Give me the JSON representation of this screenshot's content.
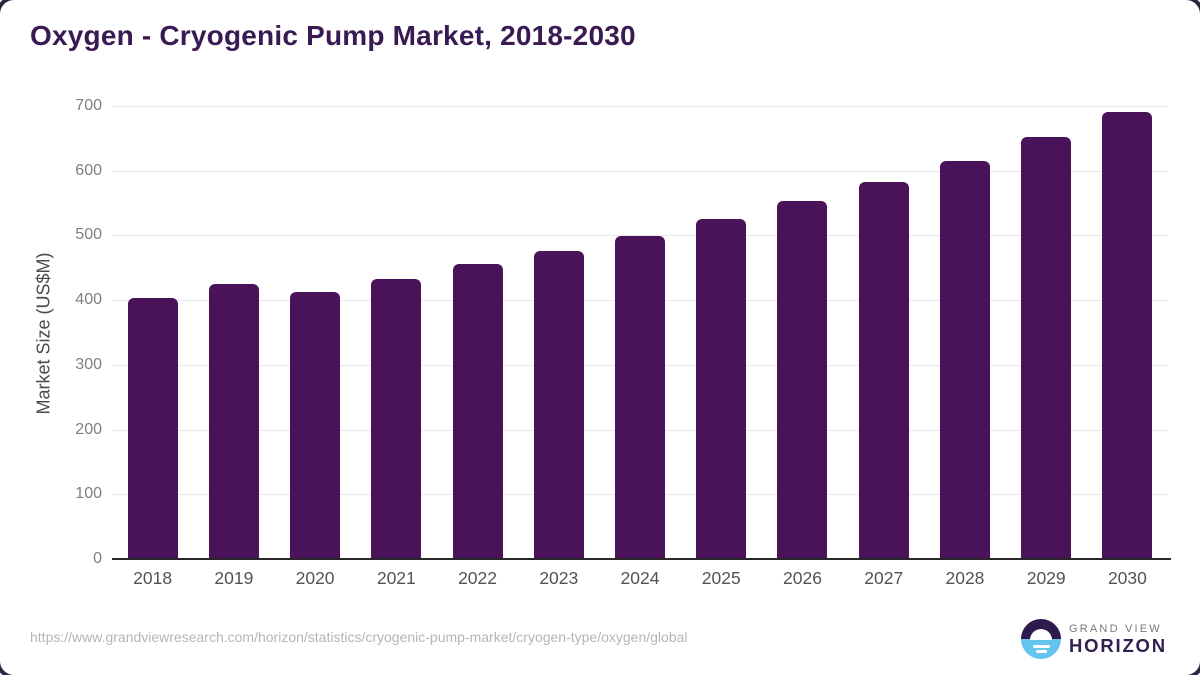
{
  "page": {
    "source_url": "https://www.grandviewresearch.com/horizon/statistics/cryogenic-pump-market/cryogen-type/oxygen/global"
  },
  "logo": {
    "line1": "GRAND VIEW",
    "line2": "HORIZON",
    "mark": "sun-over-water-circle-icon",
    "mark_top_color": "#2d1b4e",
    "mark_bottom_color": "#63c5ee"
  },
  "colors": {
    "bar": "#4a1259",
    "title": "#3a1a52",
    "gridline": "#e9e9ec",
    "axis_line": "#28282b",
    "y_tick_label": "#7d7f82",
    "x_tick_label": "#535356",
    "source_url": "#b5b5b7"
  },
  "chart_data": {
    "type": "bar",
    "title": "Oxygen - Cryogenic Pump Market, 2018-2030",
    "categories": [
      "2018",
      "2019",
      "2020",
      "2021",
      "2022",
      "2023",
      "2024",
      "2025",
      "2026",
      "2027",
      "2028",
      "2029",
      "2030"
    ],
    "values": [
      404,
      425,
      413,
      433,
      456,
      476,
      499,
      525,
      553,
      583,
      615,
      652,
      690
    ],
    "xlabel": "",
    "ylabel": "Market Size (US$M)",
    "ylim": [
      0,
      700
    ],
    "yticks": [
      0,
      100,
      200,
      300,
      400,
      500,
      600,
      700
    ],
    "grid": true,
    "legend": false,
    "bar_color": "#4a1259"
  }
}
